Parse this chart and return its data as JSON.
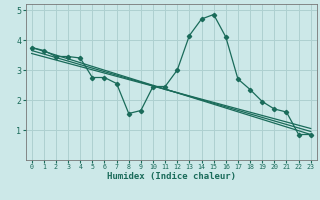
{
  "title": "",
  "xlabel": "Humidex (Indice chaleur)",
  "ylabel": "",
  "bg_color": "#cce8e8",
  "grid_color": "#aed0d0",
  "line_color": "#1a6b5a",
  "xlim": [
    -0.5,
    23.5
  ],
  "ylim": [
    0,
    5.2
  ],
  "xtick_labels": [
    "0",
    "1",
    "2",
    "3",
    "4",
    "5",
    "6",
    "7",
    "8",
    "9",
    "10",
    "11",
    "12",
    "13",
    "14",
    "15",
    "16",
    "17",
    "18",
    "19",
    "20",
    "21",
    "22",
    "23"
  ],
  "xtick_vals": [
    0,
    1,
    2,
    3,
    4,
    5,
    6,
    7,
    8,
    9,
    10,
    11,
    12,
    13,
    14,
    15,
    16,
    17,
    18,
    19,
    20,
    21,
    22,
    23
  ],
  "yticks": [
    1,
    2,
    3,
    4,
    5
  ],
  "curve1_x": [
    0,
    1,
    2,
    3,
    4,
    5,
    6,
    7,
    8,
    9,
    10,
    11,
    12,
    13,
    14,
    15,
    16,
    17,
    18,
    19,
    20,
    21,
    22,
    23
  ],
  "curve1_y": [
    3.75,
    3.65,
    3.45,
    3.45,
    3.4,
    2.75,
    2.75,
    2.55,
    1.55,
    1.65,
    2.45,
    2.45,
    3.0,
    4.15,
    4.7,
    4.85,
    4.1,
    2.7,
    2.35,
    1.95,
    1.7,
    1.6,
    0.85,
    0.85
  ],
  "trend1_x": [
    0,
    23
  ],
  "trend1_y": [
    3.75,
    0.85
  ],
  "trend2_x": [
    0,
    23
  ],
  "trend2_y": [
    3.55,
    1.05
  ],
  "trend3_x": [
    0,
    23
  ],
  "trend3_y": [
    3.65,
    0.95
  ]
}
